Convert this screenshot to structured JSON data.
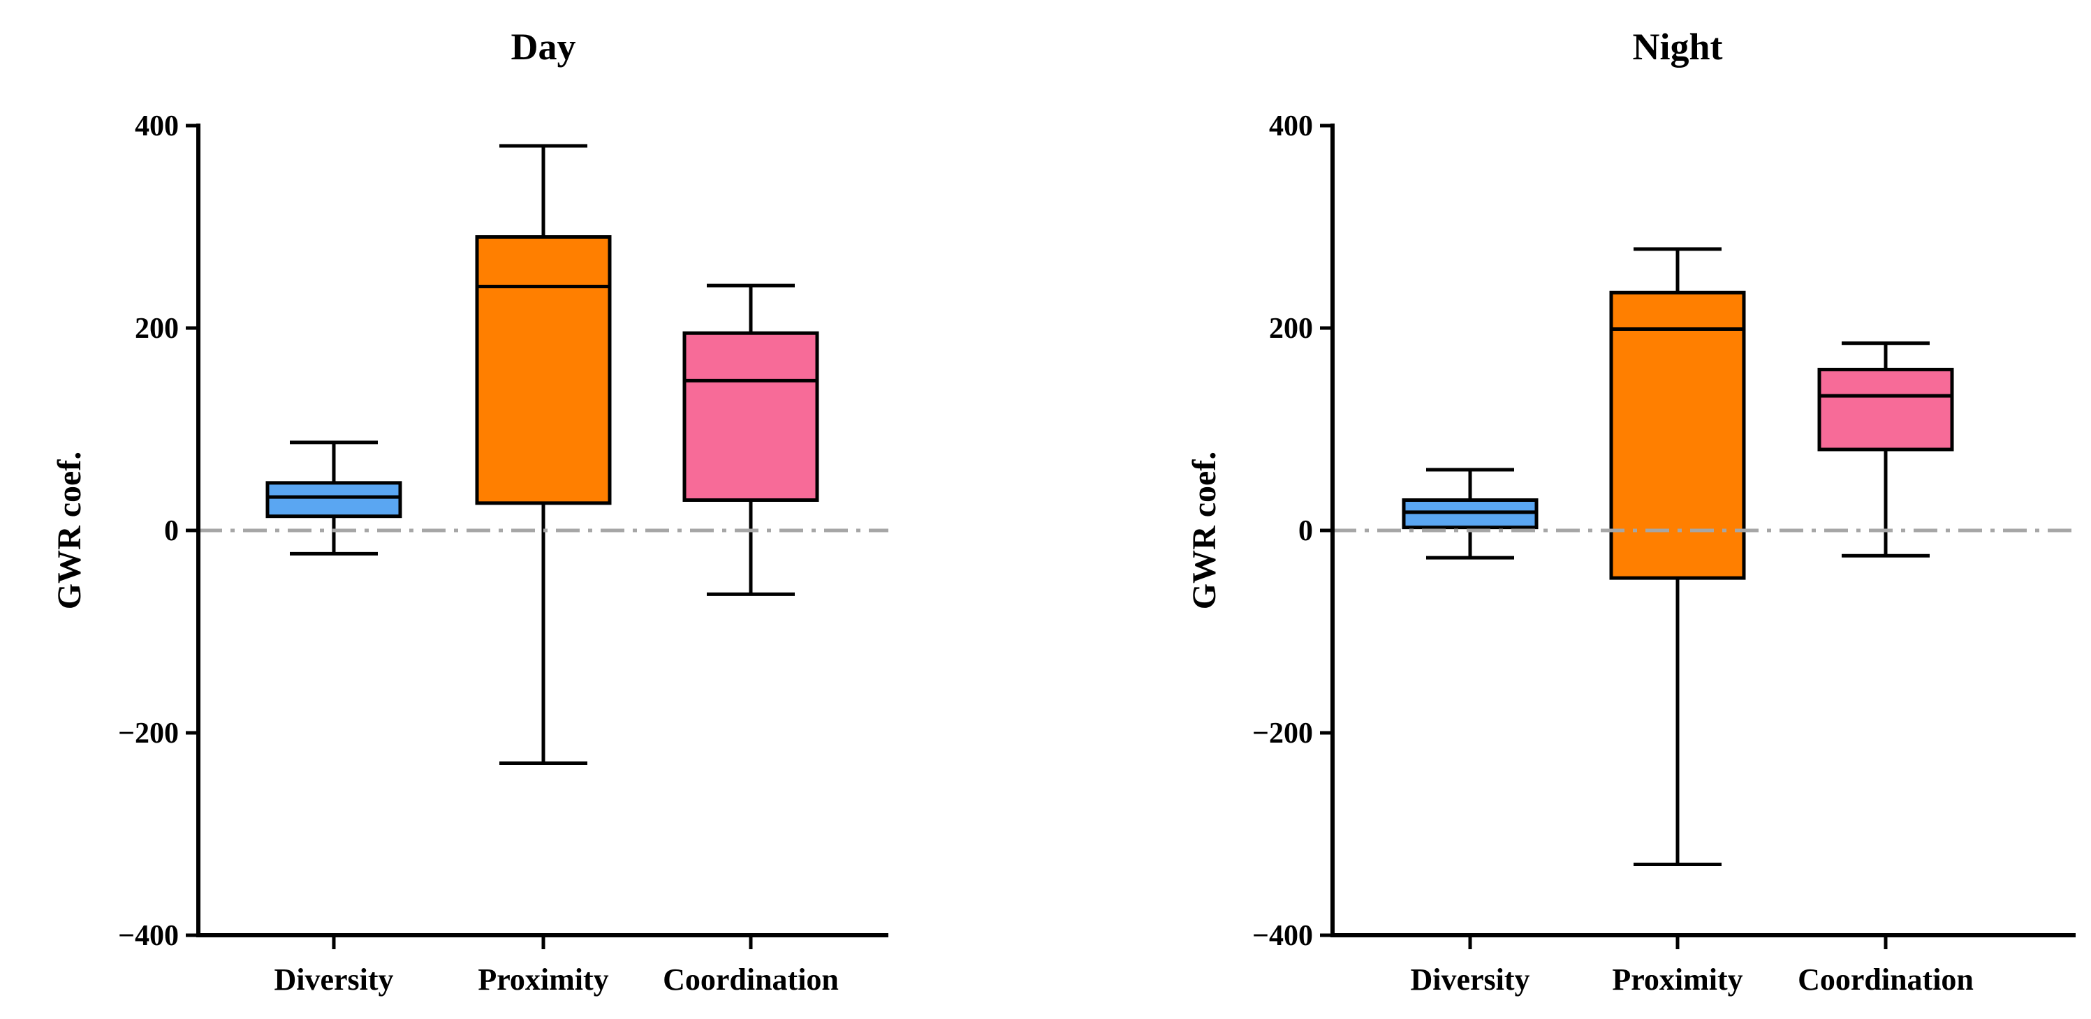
{
  "chart_data": [
    {
      "type": "box",
      "title": "Day",
      "ylabel": "GWR coef.",
      "xlabel": "",
      "ylim": [
        -400,
        400
      ],
      "yticks": [
        -400,
        -200,
        0,
        200,
        400
      ],
      "ytick_labels": [
        "-400",
        "-200",
        "0",
        "200",
        "400"
      ],
      "reference_line": 0,
      "categories": [
        "Diversity",
        "Proximity",
        "Coordination"
      ],
      "boxes": [
        {
          "name": "Diversity",
          "min": -23,
          "q1": 14,
          "median": 33,
          "q3": 47,
          "max": 87,
          "color": "#5AA6F2"
        },
        {
          "name": "Proximity",
          "min": -230,
          "q1": 27,
          "median": 241,
          "q3": 290,
          "max": 380,
          "color": "#FF7F00"
        },
        {
          "name": "Coordination",
          "min": -63,
          "q1": 30,
          "median": 148,
          "q3": 195,
          "max": 242,
          "color": "#F76B98"
        }
      ]
    },
    {
      "type": "box",
      "title": "Night",
      "ylabel": "GWR coef.",
      "xlabel": "",
      "ylim": [
        -400,
        400
      ],
      "yticks": [
        -400,
        -200,
        0,
        200,
        400
      ],
      "ytick_labels": [
        "-400",
        "-200",
        "0",
        "200",
        "400"
      ],
      "reference_line": 0,
      "categories": [
        "Diversity",
        "Proximity",
        "Coordination"
      ],
      "boxes": [
        {
          "name": "Diversity",
          "min": -27,
          "q1": 3,
          "median": 18,
          "q3": 30,
          "max": 60,
          "color": "#5AA6F2"
        },
        {
          "name": "Proximity",
          "min": -330,
          "q1": -47,
          "median": 199,
          "q3": 235,
          "max": 278,
          "color": "#FF7F00"
        },
        {
          "name": "Coordination",
          "min": -25,
          "q1": 80,
          "median": 133,
          "q3": 159,
          "max": 185,
          "color": "#F76B98"
        }
      ]
    }
  ]
}
